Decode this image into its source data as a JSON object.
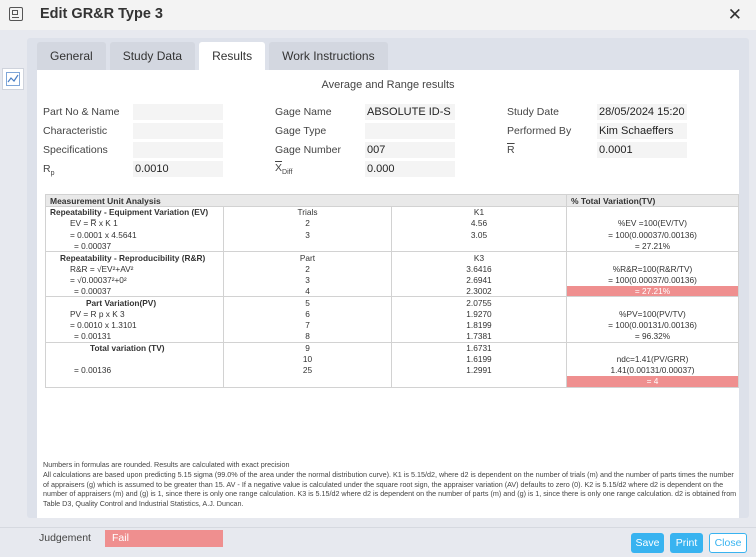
{
  "window": {
    "title": "Edit GR&R Type 3",
    "close_label": "✕"
  },
  "tabs": [
    {
      "label": "General"
    },
    {
      "label": "Study Data"
    },
    {
      "label": "Results"
    },
    {
      "label": "Work Instructions"
    }
  ],
  "section_title": "Average and Range results",
  "info": {
    "part_no_label": "Part No & Name",
    "part_no_value": "",
    "characteristic_label": "Characteristic",
    "characteristic_value": "",
    "specifications_label": "Specifications",
    "specifications_value": "",
    "rp_label": "R",
    "rp_sub": "p",
    "rp_value": "0.0010",
    "gage_name_label": "Gage Name",
    "gage_name_value": "ABSOLUTE ID-S",
    "gage_type_label": "Gage Type",
    "gage_type_value": "",
    "gage_number_label": "Gage Number",
    "gage_number_value": "007",
    "xdiff_label": "X",
    "xdiff_sub": "Diff",
    "xdiff_value": "0.000",
    "study_date_label": "Study Date",
    "study_date_value": "28/05/2024 15:20",
    "performed_by_label": "Performed By",
    "performed_by_value": "Kim Schaeffers",
    "rbar_label": "R",
    "rbar_value": "0.0001"
  },
  "table": {
    "header_left": "Measurement Unit Analysis",
    "header_right": "% Total Variation(TV)",
    "rows": [
      [
        "Repeatability - Equipment Variation (EV)",
        "Trials",
        "K1",
        ""
      ],
      [
        "EV = R̅ x K 1",
        "2",
        "4.56",
        "%EV =100(EV/TV)"
      ],
      [
        "= 0.0001 x 4.5641",
        "3",
        "3.05",
        "= 100(0.00037/0.00136)"
      ],
      [
        "= 0.00037",
        "",
        "",
        "= 27.21%"
      ],
      [
        "Repeatability - Reproducibility (R&R)",
        "Part",
        "K3",
        ""
      ],
      [
        "R&R = √EV²+AV²",
        "2",
        "3.6416",
        "%R&R=100(R&R/TV)"
      ],
      [
        "= √0.00037²+0²",
        "3",
        "2.6941",
        "= 100(0.00037/0.00136)"
      ],
      [
        "= 0.00037",
        "4",
        "2.3002",
        "= 27.21%"
      ],
      [
        "Part Variation(PV)",
        "5",
        "2.0755",
        ""
      ],
      [
        "PV = R p x K 3",
        "6",
        "1.9270",
        "%PV=100(PV/TV)"
      ],
      [
        "= 0.0010 x 1.3101",
        "7",
        "1.8199",
        "= 100(0.00131/0.00136)"
      ],
      [
        "= 0.00131",
        "8",
        "1.7381",
        "= 96.32%"
      ],
      [
        "Total variation (TV)",
        "9",
        "1.6731",
        ""
      ],
      [
        "",
        "10",
        "1.6199",
        "ndc=1.41(PV/GRR)"
      ],
      [
        "= 0.00136",
        "25",
        "1.2991",
        "1.41(0.00131/0.00037)"
      ],
      [
        "",
        "",
        "",
        "= 4"
      ]
    ]
  },
  "notes": {
    "line1": "Numbers in formulas are rounded. Results are calculated with exact precision",
    "line2": "All calculations are based upon predicting 5.15 sigma (99.0% of the area under the normal distribution curve). K1 is 5.15/d2, where d2 is dependent on the number of trials (m) and the number of parts times the number of appraisers (g) which is assumed to be greater than 15. AV - If a negative value is calculated under the square root sign, the appraiser variation (AV) defaults to zero (0). K2 is 5.15/d2 where d2 is dependent on the number of appraisers (m) and (g) is 1, since there is only one range calculation. K3 is 5.15/d2 where d2 is dependent on the number of parts (m) and (g) is 1, since there is only one range calculation. d2 is obtained from Table D3, Quality Control and Industrial Statistics, A.J. Duncan."
  },
  "judgement": {
    "label": "Judgement",
    "value": "Fail"
  },
  "buttons": {
    "save": "Save",
    "print": "Print",
    "close": "Close"
  },
  "colors": {
    "accent": "#38b3f0",
    "fail": "#ef8f8f",
    "panel": "#dde1ea"
  }
}
